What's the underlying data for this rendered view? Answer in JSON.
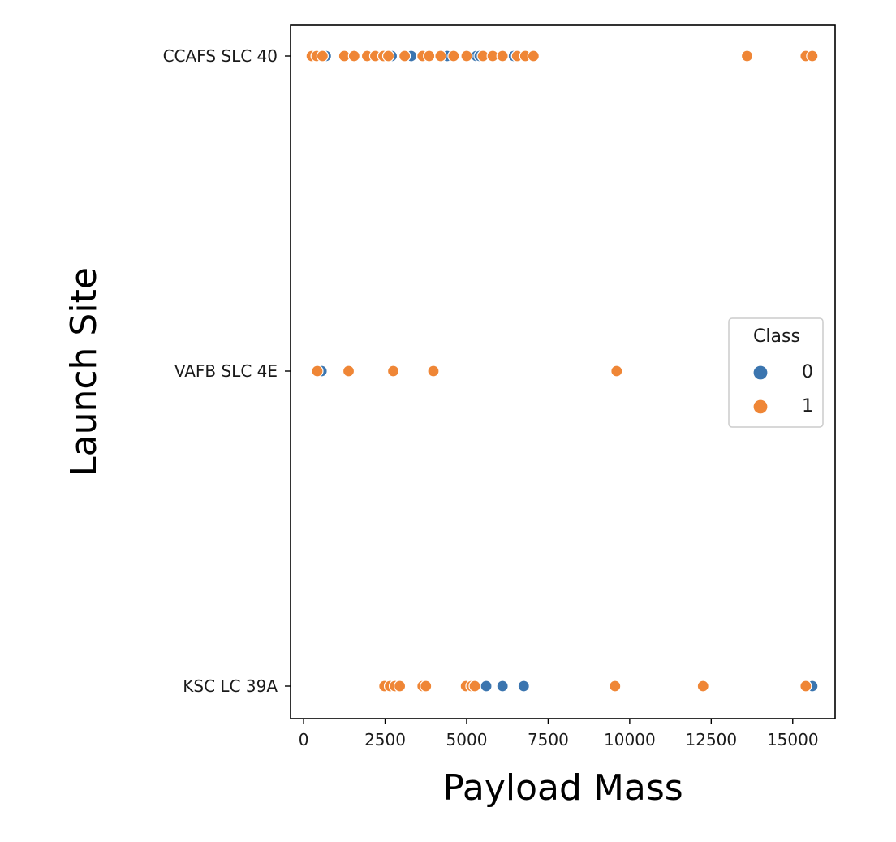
{
  "chart_data": {
    "type": "scatter",
    "xlabel": "Payload Mass",
    "ylabel": "Launch Site",
    "xlim": [
      -400,
      16300
    ],
    "x_ticks": [
      0,
      2500,
      5000,
      7500,
      10000,
      12500,
      15000
    ],
    "x_tick_labels": [
      "0",
      "2500",
      "5000",
      "7500",
      "10000",
      "12500",
      "15000"
    ],
    "categories": [
      "CCAFS SLC 40",
      "VAFB SLC 4E",
      "KSC LC 39A"
    ],
    "grid": false,
    "legend": {
      "title": "Class",
      "placement": "right",
      "labels": [
        "0",
        "1"
      ]
    },
    "series": [
      {
        "name": "0",
        "color": "#3b75af",
        "points": [
          {
            "x": 500,
            "y": "CCAFS SLC 40"
          },
          {
            "x": 680,
            "y": "CCAFS SLC 40"
          },
          {
            "x": 2700,
            "y": "CCAFS SLC 40"
          },
          {
            "x": 3300,
            "y": "CCAFS SLC 40"
          },
          {
            "x": 4400,
            "y": "CCAFS SLC 40"
          },
          {
            "x": 5300,
            "y": "CCAFS SLC 40"
          },
          {
            "x": 5400,
            "y": "CCAFS SLC 40"
          },
          {
            "x": 6450,
            "y": "CCAFS SLC 40"
          },
          {
            "x": 550,
            "y": "VAFB SLC 4E"
          },
          {
            "x": 5600,
            "y": "KSC LC 39A"
          },
          {
            "x": 6100,
            "y": "KSC LC 39A"
          },
          {
            "x": 6750,
            "y": "KSC LC 39A"
          },
          {
            "x": 15600,
            "y": "KSC LC 39A"
          }
        ]
      },
      {
        "name": "1",
        "color": "#ef8636",
        "points": [
          {
            "x": 250,
            "y": "CCAFS SLC 40"
          },
          {
            "x": 400,
            "y": "CCAFS SLC 40"
          },
          {
            "x": 580,
            "y": "CCAFS SLC 40"
          },
          {
            "x": 1250,
            "y": "CCAFS SLC 40"
          },
          {
            "x": 1550,
            "y": "CCAFS SLC 40"
          },
          {
            "x": 1950,
            "y": "CCAFS SLC 40"
          },
          {
            "x": 2200,
            "y": "CCAFS SLC 40"
          },
          {
            "x": 2450,
            "y": "CCAFS SLC 40"
          },
          {
            "x": 2600,
            "y": "CCAFS SLC 40"
          },
          {
            "x": 3100,
            "y": "CCAFS SLC 40"
          },
          {
            "x": 3650,
            "y": "CCAFS SLC 40"
          },
          {
            "x": 3850,
            "y": "CCAFS SLC 40"
          },
          {
            "x": 4200,
            "y": "CCAFS SLC 40"
          },
          {
            "x": 4600,
            "y": "CCAFS SLC 40"
          },
          {
            "x": 5000,
            "y": "CCAFS SLC 40"
          },
          {
            "x": 5500,
            "y": "CCAFS SLC 40"
          },
          {
            "x": 5800,
            "y": "CCAFS SLC 40"
          },
          {
            "x": 6100,
            "y": "CCAFS SLC 40"
          },
          {
            "x": 6550,
            "y": "CCAFS SLC 40"
          },
          {
            "x": 6800,
            "y": "CCAFS SLC 40"
          },
          {
            "x": 7050,
            "y": "CCAFS SLC 40"
          },
          {
            "x": 13600,
            "y": "CCAFS SLC 40"
          },
          {
            "x": 15400,
            "y": "CCAFS SLC 40"
          },
          {
            "x": 15600,
            "y": "CCAFS SLC 40"
          },
          {
            "x": 420,
            "y": "VAFB SLC 4E"
          },
          {
            "x": 1380,
            "y": "VAFB SLC 4E"
          },
          {
            "x": 2750,
            "y": "VAFB SLC 4E"
          },
          {
            "x": 3980,
            "y": "VAFB SLC 4E"
          },
          {
            "x": 9600,
            "y": "VAFB SLC 4E"
          },
          {
            "x": 2480,
            "y": "KSC LC 39A"
          },
          {
            "x": 2650,
            "y": "KSC LC 39A"
          },
          {
            "x": 2800,
            "y": "KSC LC 39A"
          },
          {
            "x": 2950,
            "y": "KSC LC 39A"
          },
          {
            "x": 3650,
            "y": "KSC LC 39A"
          },
          {
            "x": 3750,
            "y": "KSC LC 39A"
          },
          {
            "x": 4980,
            "y": "KSC LC 39A"
          },
          {
            "x": 5150,
            "y": "KSC LC 39A"
          },
          {
            "x": 5250,
            "y": "KSC LC 39A"
          },
          {
            "x": 9550,
            "y": "KSC LC 39A"
          },
          {
            "x": 12250,
            "y": "KSC LC 39A"
          },
          {
            "x": 15400,
            "y": "KSC LC 39A"
          }
        ]
      }
    ]
  }
}
